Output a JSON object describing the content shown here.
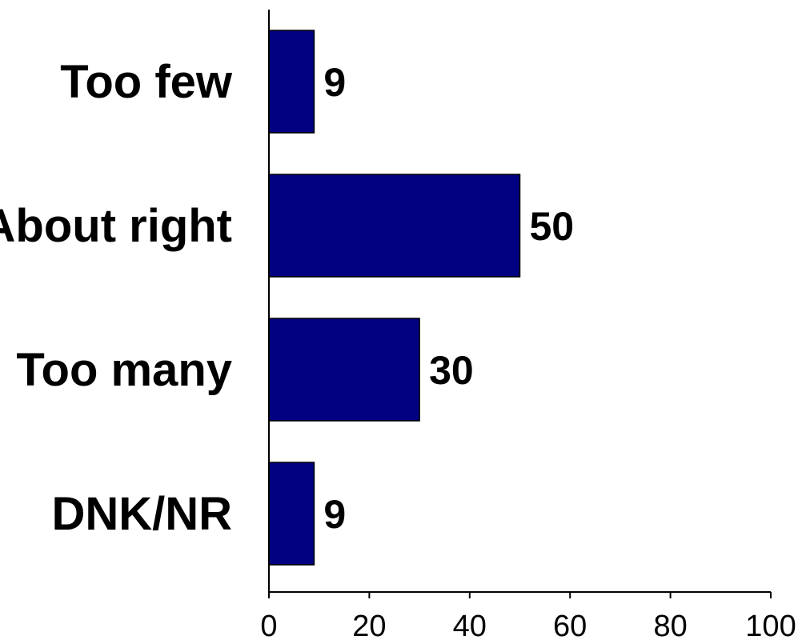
{
  "chart_data": {
    "type": "bar",
    "orientation": "horizontal",
    "categories": [
      "Too few",
      "About right",
      "Too many",
      "DNK/NR"
    ],
    "values": [
      9,
      50,
      30,
      9
    ],
    "value_labels": [
      "9",
      "50",
      "30",
      "9"
    ],
    "xlim": [
      0,
      100
    ],
    "x_ticks": [
      0,
      20,
      40,
      60,
      80,
      100
    ],
    "x_tick_labels": [
      "0",
      "20",
      "40",
      "60",
      "80",
      "100"
    ],
    "grid": false,
    "bar_color": "#000080"
  }
}
